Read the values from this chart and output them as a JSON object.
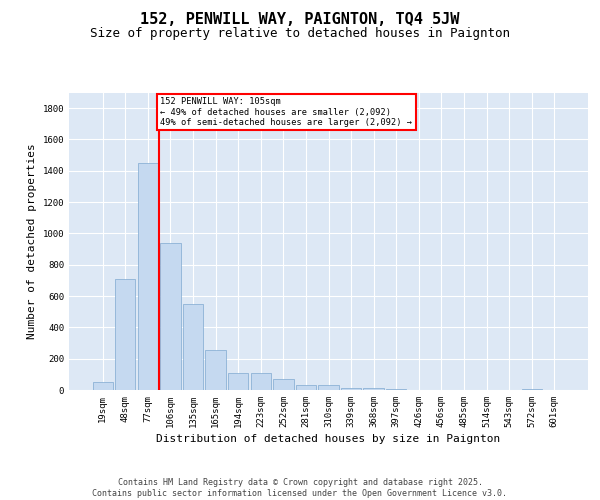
{
  "title": "152, PENWILL WAY, PAIGNTON, TQ4 5JW",
  "subtitle": "Size of property relative to detached houses in Paignton",
  "xlabel": "Distribution of detached houses by size in Paignton",
  "ylabel": "Number of detached properties",
  "categories": [
    "19sqm",
    "48sqm",
    "77sqm",
    "106sqm",
    "135sqm",
    "165sqm",
    "194sqm",
    "223sqm",
    "252sqm",
    "281sqm",
    "310sqm",
    "339sqm",
    "368sqm",
    "397sqm",
    "426sqm",
    "456sqm",
    "485sqm",
    "514sqm",
    "543sqm",
    "572sqm",
    "601sqm"
  ],
  "values": [
    50,
    710,
    1450,
    940,
    550,
    255,
    110,
    110,
    70,
    30,
    30,
    15,
    10,
    5,
    2,
    2,
    2,
    2,
    2,
    5,
    2
  ],
  "bar_color": "#c5d9f0",
  "bar_edge_color": "#7fa8d0",
  "vline_x_index": 3,
  "vline_color": "red",
  "annotation_text": "152 PENWILL WAY: 105sqm\n← 49% of detached houses are smaller (2,092)\n49% of semi-detached houses are larger (2,092) →",
  "annotation_box_color": "red",
  "annotation_bg": "white",
  "ylim": [
    0,
    1900
  ],
  "yticks": [
    0,
    200,
    400,
    600,
    800,
    1000,
    1200,
    1400,
    1600,
    1800
  ],
  "footer": "Contains HM Land Registry data © Crown copyright and database right 2025.\nContains public sector information licensed under the Open Government Licence v3.0.",
  "bg_color": "#dde8f5",
  "grid_color": "white",
  "title_fontsize": 11,
  "subtitle_fontsize": 9,
  "label_fontsize": 8,
  "tick_fontsize": 6.5,
  "footer_fontsize": 6
}
